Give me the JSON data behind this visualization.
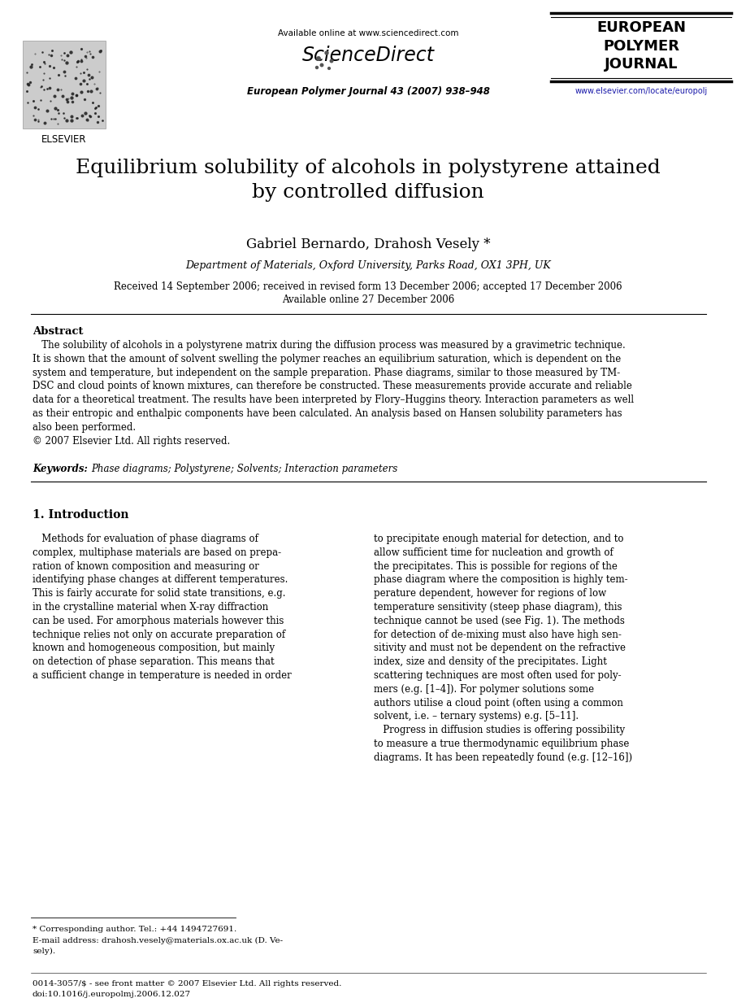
{
  "bg_color": "#ffffff",
  "available_online": "Available online at www.sciencedirect.com",
  "sciencedirect": "ScienceDirect",
  "journal_line": "European Polymer Journal 43 (2007) 938–948",
  "journal_name_line1": "EUROPEAN",
  "journal_name_line2": "POLYMER",
  "journal_name_line3": "JOURNAL",
  "journal_url": "www.elsevier.com/locate/europolj",
  "elsevier_text": "ELSEVIER",
  "title": "Equilibrium solubility of alcohols in polystyrene attained\nby controlled diffusion",
  "authors": "Gabriel Bernardo, Drahosh Vesely *",
  "affiliation": "Department of Materials, Oxford University, Parks Road, OX1 3PH, UK",
  "date_line1": "Received 14 September 2006; received in revised form 13 December 2006; accepted 17 December 2006",
  "date_line2": "Available online 27 December 2006",
  "abstract_label": "Abstract",
  "abstract_body": "   The solubility of alcohols in a polystyrene matrix during the diffusion process was measured by a gravimetric technique.\nIt is shown that the amount of solvent swelling the polymer reaches an equilibrium saturation, which is dependent on the\nsystem and temperature, but independent on the sample preparation. Phase diagrams, similar to those measured by TM-\nDSC and cloud points of known mixtures, can therefore be constructed. These measurements provide accurate and reliable\ndata for a theoretical treatment. The results have been interpreted by Flory–Huggins theory. Interaction parameters as well\nas their entropic and enthalpic components have been calculated. An analysis based on Hansen solubility parameters has\nalso been performed.\n© 2007 Elsevier Ltd. All rights reserved.",
  "keywords_label": "Keywords: ",
  "keywords_text": "Phase diagrams; Polystyrene; Solvents; Interaction parameters",
  "section1_title": "1. Introduction",
  "col1_text": "   Methods for evaluation of phase diagrams of\ncomplex, multiphase materials are based on prepa-\nration of known composition and measuring or\nidentifying phase changes at different temperatures.\nThis is fairly accurate for solid state transitions, e.g.\nin the crystalline material when X-ray diffraction\ncan be used. For amorphous materials however this\ntechnique relies not only on accurate preparation of\nknown and homogeneous composition, but mainly\non detection of phase separation. This means that\na sufficient change in temperature is needed in order",
  "col2_text": "to precipitate enough material for detection, and to\nallow sufficient time for nucleation and growth of\nthe precipitates. This is possible for regions of the\nphase diagram where the composition is highly tem-\nperature dependent, however for regions of low\ntemperature sensitivity (steep phase diagram), this\ntechnique cannot be used (see Fig. 1). The methods\nfor detection of de-mixing must also have high sen-\nsitivity and must not be dependent on the refractive\nindex, size and density of the precipitates. Light\nscattering techniques are most often used for poly-\nmers (e.g. [1–4]). For polymer solutions some\nauthors utilise a cloud point (often using a common\nsolvent, i.e. – ternary systems) e.g. [5–11].\n   Progress in diffusion studies is offering possibility\nto measure a true thermodynamic equilibrium phase\ndiagrams. It has been repeatedly found (e.g. [12–16])",
  "footnote_line0": "* Corresponding author. Tel.: +44 1494727691.",
  "footnote_line1": "E-mail address: drahosh.vesely@materials.ox.ac.uk (D. Ve-",
  "footnote_line2": "sely).",
  "footer_line1": "0014-3057/$ - see front matter © 2007 Elsevier Ltd. All rights reserved.",
  "footer_line2": "doi:10.1016/j.europolmj.2006.12.027"
}
